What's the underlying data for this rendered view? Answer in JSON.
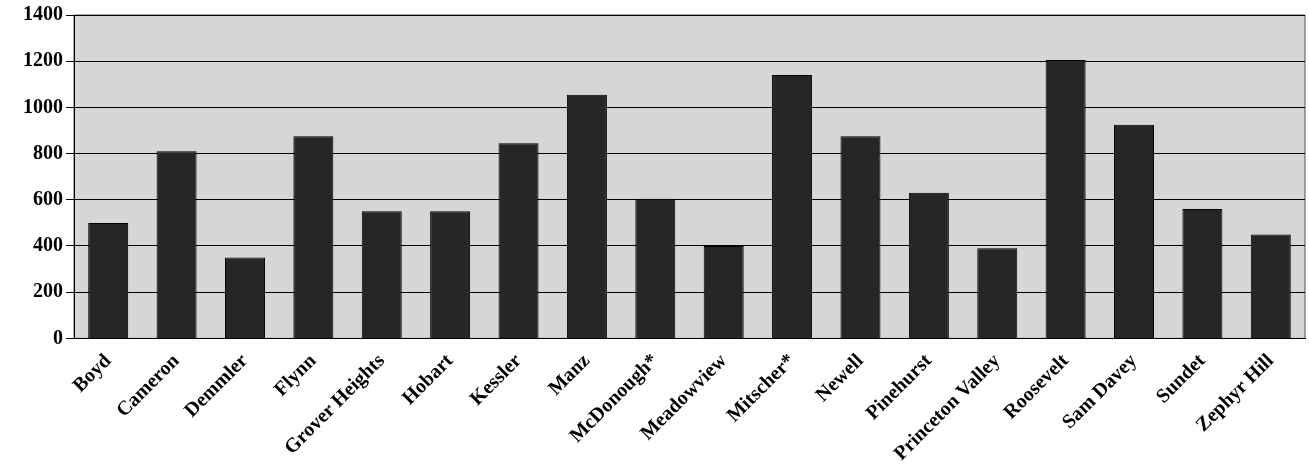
{
  "chart_data": {
    "type": "bar",
    "categories": [
      "Boyd",
      "Cameron",
      "Demmler",
      "Flynn",
      "Grover Heights",
      "Hobart",
      "Kessler",
      "Manz",
      "McDonough*",
      "Meadowview",
      "Mitscher*",
      "Newell",
      "Pinehurst",
      "Princeton Valley",
      "Roosevelt",
      "Sam Davey",
      "Sundet",
      "Zephyr Hill"
    ],
    "values": [
      500,
      810,
      350,
      875,
      550,
      550,
      845,
      1055,
      605,
      400,
      1140,
      875,
      630,
      390,
      1205,
      925,
      560,
      450
    ],
    "color": "#262626",
    "ylim": [
      0,
      1400
    ],
    "yticks": [
      0,
      200,
      400,
      600,
      800,
      1000,
      1200,
      1400
    ],
    "grid": "y"
  }
}
